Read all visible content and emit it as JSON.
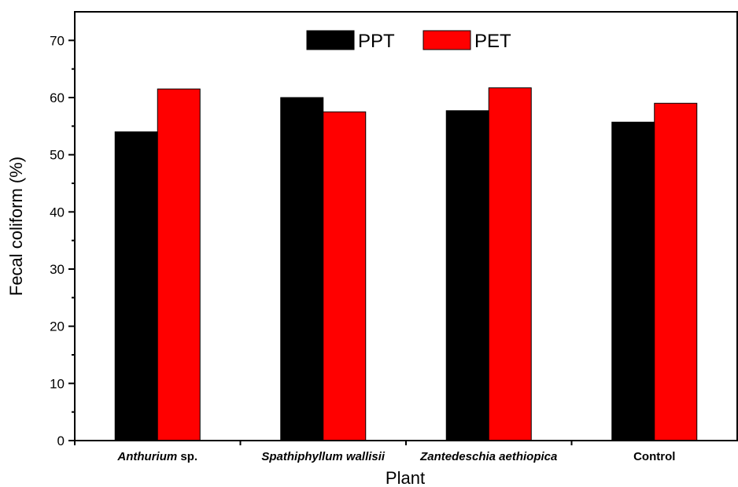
{
  "chart_data": {
    "type": "bar",
    "categories": [
      {
        "italic": "Anthurium",
        "plain": " sp."
      },
      {
        "italic": "Spathiphyllum wallisii",
        "plain": ""
      },
      {
        "italic": "Zantedeschia aethiopica",
        "plain": ""
      },
      {
        "italic": "",
        "plain": "Control"
      }
    ],
    "series": [
      {
        "name": "PPT",
        "color": "#000000",
        "values": [
          54.0,
          60.0,
          57.7,
          55.7
        ]
      },
      {
        "name": "PET",
        "color": "#ff0000",
        "values": [
          61.5,
          57.5,
          61.7,
          59.0
        ]
      }
    ],
    "xlabel": "Plant",
    "ylabel": "Fecal coliform (%)",
    "ylim": [
      0,
      75
    ],
    "yticks": [
      0,
      10,
      20,
      30,
      40,
      50,
      60,
      70
    ],
    "grid": false,
    "legend_position": "top-center"
  }
}
